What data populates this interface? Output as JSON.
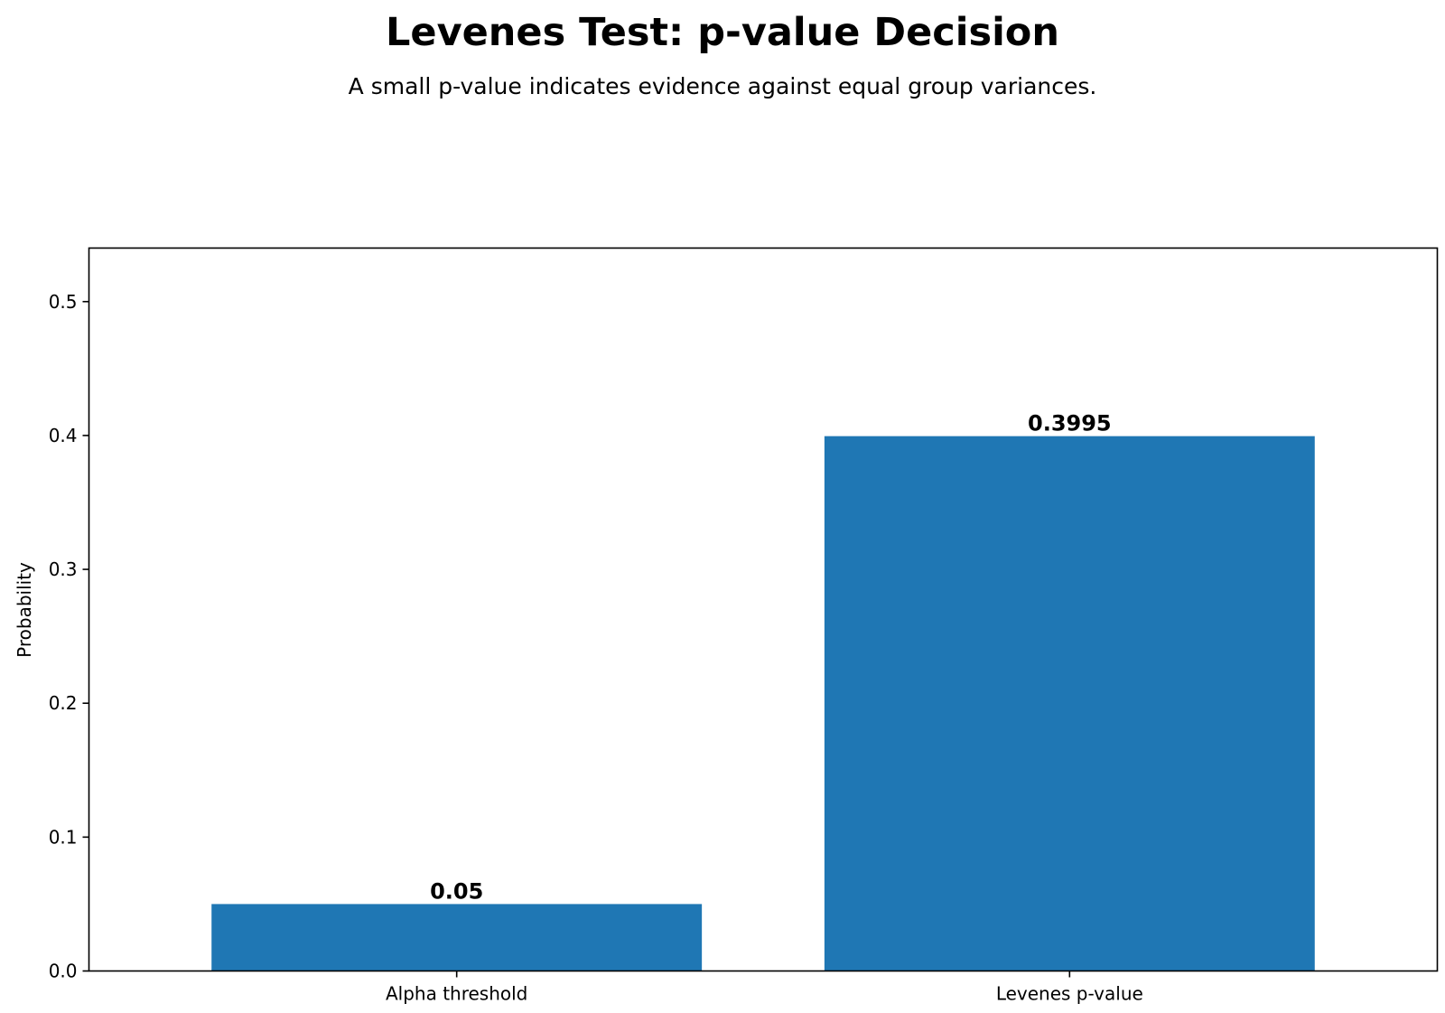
{
  "chart_data": {
    "type": "bar",
    "title": "Levenes Test: p-value Decision",
    "subtitle": "A small p-value indicates evidence against equal group variances.",
    "xlabel": "",
    "ylabel": "Probability",
    "categories": [
      "Alpha threshold",
      "Levenes p-value"
    ],
    "values": [
      0.05,
      0.3995
    ],
    "value_labels": [
      "0.05",
      "0.3995"
    ],
    "ylim": [
      0,
      0.54
    ],
    "yticks": [
      0.0,
      0.1,
      0.2,
      0.3,
      0.4,
      0.5
    ],
    "ytick_labels": [
      "0.0",
      "0.1",
      "0.2",
      "0.3",
      "0.4",
      "0.5"
    ],
    "bar_color": "#1f77b4",
    "grid": false,
    "legend": "none"
  }
}
